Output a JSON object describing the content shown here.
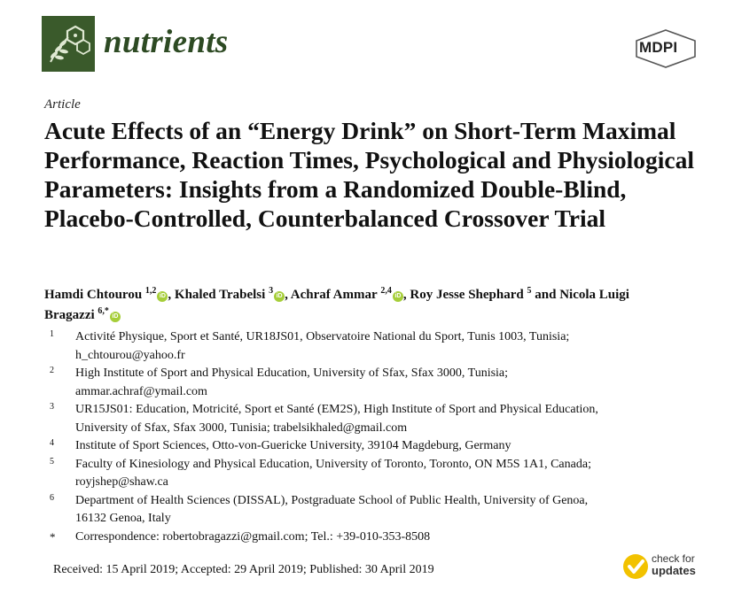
{
  "header": {
    "journal_name": "nutrients",
    "journal_logo_icon": "journal-molecule-leaf-icon",
    "publisher_logo_text": "MDPI",
    "brand_color": "#3a5a2b",
    "orcid_color": "#a6ce39"
  },
  "article": {
    "type": "Article",
    "title": "Acute Effects of an “Energy Drink” on Short-Term Maximal Performance, Reaction Times, Psychological and Physiological Parameters: Insights from a Randomized Double-Blind, Placebo-Controlled, Counterbalanced Crossover Trial"
  },
  "authors": [
    {
      "name": "Hamdi Chtourou",
      "sup": "1,2",
      "orcid": true,
      "sep": ", "
    },
    {
      "name": "Khaled Trabelsi",
      "sup": "3",
      "orcid": true,
      "sep": ", "
    },
    {
      "name": "Achraf Ammar",
      "sup": "2,4",
      "orcid": true,
      "sep": ", "
    },
    {
      "name": "Roy Jesse Shephard",
      "sup": "5",
      "orcid": false,
      "sep": " and "
    },
    {
      "name": "Nicola Luigi Bragazzi",
      "sup": "6,*",
      "orcid": true,
      "sep": ""
    }
  ],
  "affiliations": [
    {
      "num": "1",
      "lines": [
        "Activité Physique, Sport et Santé, UR18JS01, Observatoire National du Sport, Tunis 1003, Tunisia;",
        "h_chtourou@yahoo.fr"
      ]
    },
    {
      "num": "2",
      "lines": [
        "High Institute of Sport and Physical Education, University of Sfax, Sfax 3000, Tunisia;",
        "ammar.achraf@ymail.com"
      ]
    },
    {
      "num": "3",
      "lines": [
        "UR15JS01: Education, Motricité, Sport et Santé (EM2S), High Institute of Sport and Physical Education,",
        "University of Sfax, Sfax 3000, Tunisia; trabelsikhaled@gmail.com"
      ]
    },
    {
      "num": "4",
      "lines": [
        "Institute of Sport Sciences, Otto-von-Guericke University, 39104 Magdeburg, Germany"
      ]
    },
    {
      "num": "5",
      "lines": [
        "Faculty of Kinesiology and Physical Education, University of Toronto, Toronto, ON M5S 1A1, Canada;",
        "royjshep@shaw.ca"
      ]
    },
    {
      "num": "6",
      "lines": [
        "Department of Health Sciences (DISSAL), Postgraduate School of Public Health, University of Genoa,",
        "16132 Genoa, Italy"
      ]
    },
    {
      "num": "*",
      "lines": [
        "Correspondence: robertobragazzi@gmail.com; Tel.: +39-010-353-8508"
      ]
    }
  ],
  "dates": {
    "text": "Received: 15 April 2019; Accepted: 29 April 2019; Published: 30 April 2019"
  },
  "check_updates": {
    "line1": "check for",
    "line2": "updates",
    "icon": "check-for-updates-icon",
    "icon_color": "#f2c200"
  }
}
